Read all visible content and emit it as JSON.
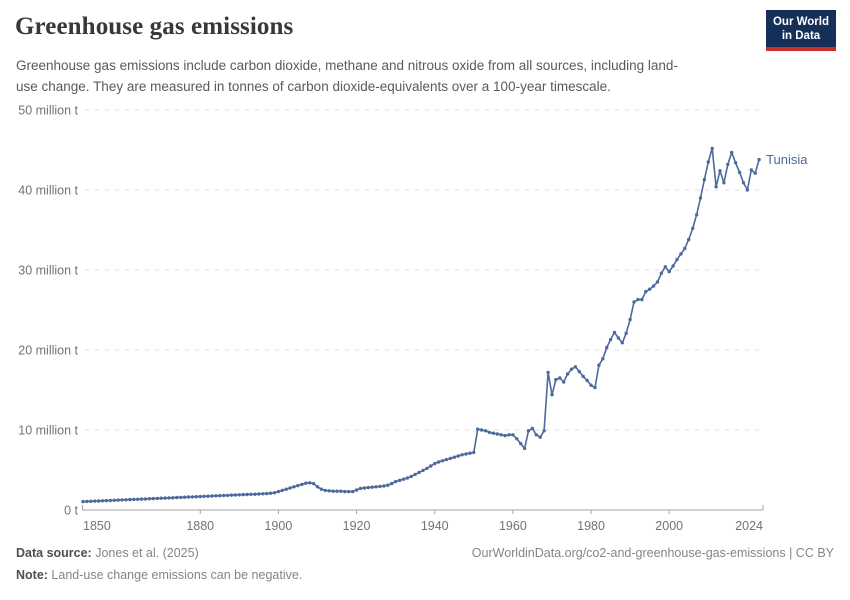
{
  "header": {
    "title": "Greenhouse gas emissions",
    "subtitle": "Greenhouse gas emissions include carbon dioxide, methane and nitrous oxide from all sources, including land-use change. They are measured in tonnes of carbon dioxide-equivalents over a 100-year timescale."
  },
  "logo": {
    "line1": "Our World",
    "line2": "in Data"
  },
  "chart_data": {
    "type": "line",
    "title": "Greenhouse gas emissions",
    "entity": "Tunisia",
    "unit": "tonnes of CO2-equivalents",
    "xlim": [
      1850,
      2024
    ],
    "ylim": [
      0,
      50
    ],
    "grid": "dashed-horizontal",
    "legend": "end-of-line-label",
    "xticks": [
      1850,
      1880,
      1900,
      1920,
      1940,
      1960,
      1980,
      2000,
      2024
    ],
    "yticks": [
      {
        "value": 0,
        "label": "0 t"
      },
      {
        "value": 10,
        "label": "10 million t"
      },
      {
        "value": 20,
        "label": "20 million t"
      },
      {
        "value": 30,
        "label": "30 million t"
      },
      {
        "value": 40,
        "label": "40 million t"
      },
      {
        "value": 50,
        "label": "50 million t"
      }
    ],
    "x": [
      1850,
      1851,
      1852,
      1853,
      1854,
      1855,
      1856,
      1857,
      1858,
      1859,
      1860,
      1861,
      1862,
      1863,
      1864,
      1865,
      1866,
      1867,
      1868,
      1869,
      1870,
      1871,
      1872,
      1873,
      1874,
      1875,
      1876,
      1877,
      1878,
      1879,
      1880,
      1881,
      1882,
      1883,
      1884,
      1885,
      1886,
      1887,
      1888,
      1889,
      1890,
      1891,
      1892,
      1893,
      1894,
      1895,
      1896,
      1897,
      1898,
      1899,
      1900,
      1901,
      1902,
      1903,
      1904,
      1905,
      1906,
      1907,
      1908,
      1909,
      1910,
      1911,
      1912,
      1913,
      1914,
      1915,
      1916,
      1917,
      1918,
      1919,
      1920,
      1921,
      1922,
      1923,
      1924,
      1925,
      1926,
      1927,
      1928,
      1929,
      1930,
      1931,
      1932,
      1933,
      1934,
      1935,
      1936,
      1937,
      1938,
      1939,
      1940,
      1941,
      1942,
      1943,
      1944,
      1945,
      1946,
      1947,
      1948,
      1949,
      1950,
      1951,
      1952,
      1953,
      1954,
      1955,
      1956,
      1957,
      1958,
      1959,
      1960,
      1961,
      1962,
      1963,
      1964,
      1965,
      1966,
      1967,
      1968,
      1969,
      1970,
      1971,
      1972,
      1973,
      1974,
      1975,
      1976,
      1977,
      1978,
      1979,
      1980,
      1981,
      1982,
      1983,
      1984,
      1985,
      1986,
      1987,
      1988,
      1989,
      1990,
      1991,
      1992,
      1993,
      1994,
      1995,
      1996,
      1997,
      1998,
      1999,
      2000,
      2001,
      2002,
      2003,
      2004,
      2005,
      2006,
      2007,
      2008,
      2009,
      2010,
      2011,
      2012,
      2013,
      2014,
      2015,
      2016,
      2017,
      2018,
      2019,
      2020,
      2021,
      2022,
      2023
    ],
    "series": [
      {
        "name": "Tunisia",
        "color": "#4C6A9C",
        "values": [
          1.05,
          1.07,
          1.09,
          1.11,
          1.13,
          1.15,
          1.17,
          1.19,
          1.21,
          1.24,
          1.26,
          1.28,
          1.3,
          1.32,
          1.34,
          1.36,
          1.38,
          1.41,
          1.43,
          1.45,
          1.47,
          1.49,
          1.51,
          1.53,
          1.56,
          1.58,
          1.6,
          1.62,
          1.64,
          1.66,
          1.68,
          1.71,
          1.73,
          1.75,
          1.77,
          1.79,
          1.81,
          1.83,
          1.86,
          1.88,
          1.9,
          1.92,
          1.94,
          1.96,
          1.98,
          2.0,
          2.03,
          2.05,
          2.1,
          2.15,
          2.3,
          2.45,
          2.6,
          2.75,
          2.9,
          3.05,
          3.2,
          3.35,
          3.4,
          3.3,
          2.9,
          2.6,
          2.45,
          2.4,
          2.35,
          2.35,
          2.35,
          2.3,
          2.3,
          2.3,
          2.5,
          2.7,
          2.75,
          2.8,
          2.85,
          2.9,
          2.95,
          3.0,
          3.1,
          3.3,
          3.55,
          3.7,
          3.85,
          4.0,
          4.2,
          4.45,
          4.7,
          4.95,
          5.2,
          5.5,
          5.8,
          6.0,
          6.15,
          6.3,
          6.45,
          6.6,
          6.75,
          6.9,
          7.0,
          7.1,
          7.2,
          10.1,
          10.0,
          9.9,
          9.7,
          9.6,
          9.5,
          9.4,
          9.3,
          9.4,
          9.4,
          8.9,
          8.3,
          7.7,
          9.9,
          10.2,
          9.4,
          9.1,
          9.9,
          17.2,
          14.4,
          16.3,
          16.5,
          16.0,
          17.0,
          17.6,
          17.9,
          17.3,
          16.7,
          16.2,
          15.6,
          15.3,
          18.1,
          18.9,
          20.3,
          21.3,
          22.2,
          21.5,
          20.9,
          22.1,
          23.8,
          26.0,
          26.3,
          26.3,
          27.3,
          27.6,
          28.0,
          28.5,
          29.6,
          30.4,
          29.8,
          30.5,
          31.3,
          32.0,
          32.7,
          33.8,
          35.2,
          36.9,
          39.0,
          41.3,
          43.5,
          45.2,
          40.4,
          42.4,
          40.9,
          43.2,
          44.7,
          43.4,
          42.2,
          40.9,
          40.0,
          42.5,
          42.1,
          43.8
        ]
      }
    ]
  },
  "footer": {
    "source_label": "Data source:",
    "source_value": " Jones et al. (2025)",
    "note_label": "Note:",
    "note_value": " Land-use change emissions can be negative.",
    "url": "OurWorldinData.org/co2-and-greenhouse-gas-emissions | CC BY"
  },
  "colors": {
    "line": "#4C6A9C",
    "grid": "#dcdcdc",
    "axis": "#a3a3a3",
    "tick_text": "#737373",
    "entity_label": "#4C6A9C"
  }
}
